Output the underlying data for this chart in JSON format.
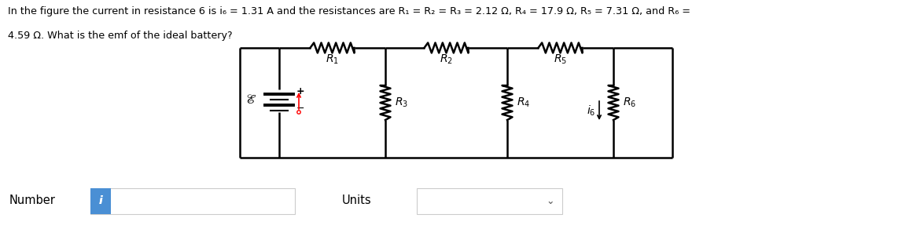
{
  "text_line1": "In the figure the current in resistance 6 is i₆ = 1.31 A and the resistances are R₁ = R₂ = R₃ = 2.12 Ω, R₄ = 17.9 Ω, R₅ = 7.31 Ω, and R₆ =",
  "text_line2": "4.59 Ω. What is the emf of the ideal battery?",
  "number_label": "Number",
  "units_label": "Units",
  "bg_color": "#ffffff",
  "text_color": "#000000",
  "circuit_color": "#000000",
  "info_button_color": "#4a8fd4",
  "label_R1": "$R_1$",
  "label_R2": "$R_2$",
  "label_R3": "$R_3$",
  "label_R4": "$R_4$",
  "label_R5": "$R_5$",
  "label_R6": "$R_6$",
  "label_emf": "$\\mathscr{E}$",
  "label_i6": "$i_6$",
  "label_plus": "+",
  "label_minus": "−"
}
